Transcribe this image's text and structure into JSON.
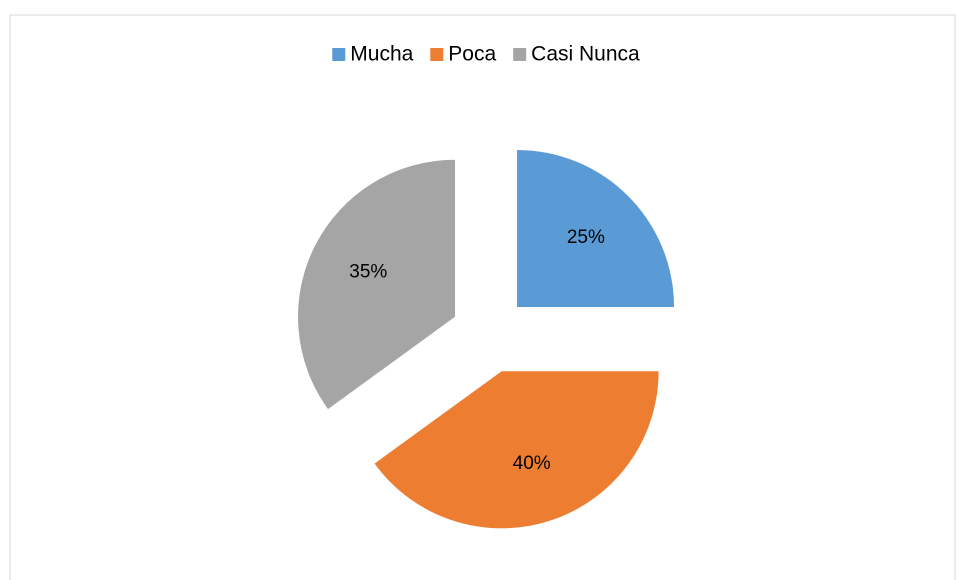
{
  "chart_data": {
    "type": "pie",
    "categories": [
      "Mucha",
      "Poca",
      "Casi Nunca"
    ],
    "values": [
      25,
      40,
      35
    ],
    "value_labels": [
      "25%",
      "40%",
      "35%"
    ],
    "colors": [
      "#5b9bd5",
      "#ed7d31",
      "#a5a5a5"
    ],
    "legend": "top",
    "exploded": true
  }
}
